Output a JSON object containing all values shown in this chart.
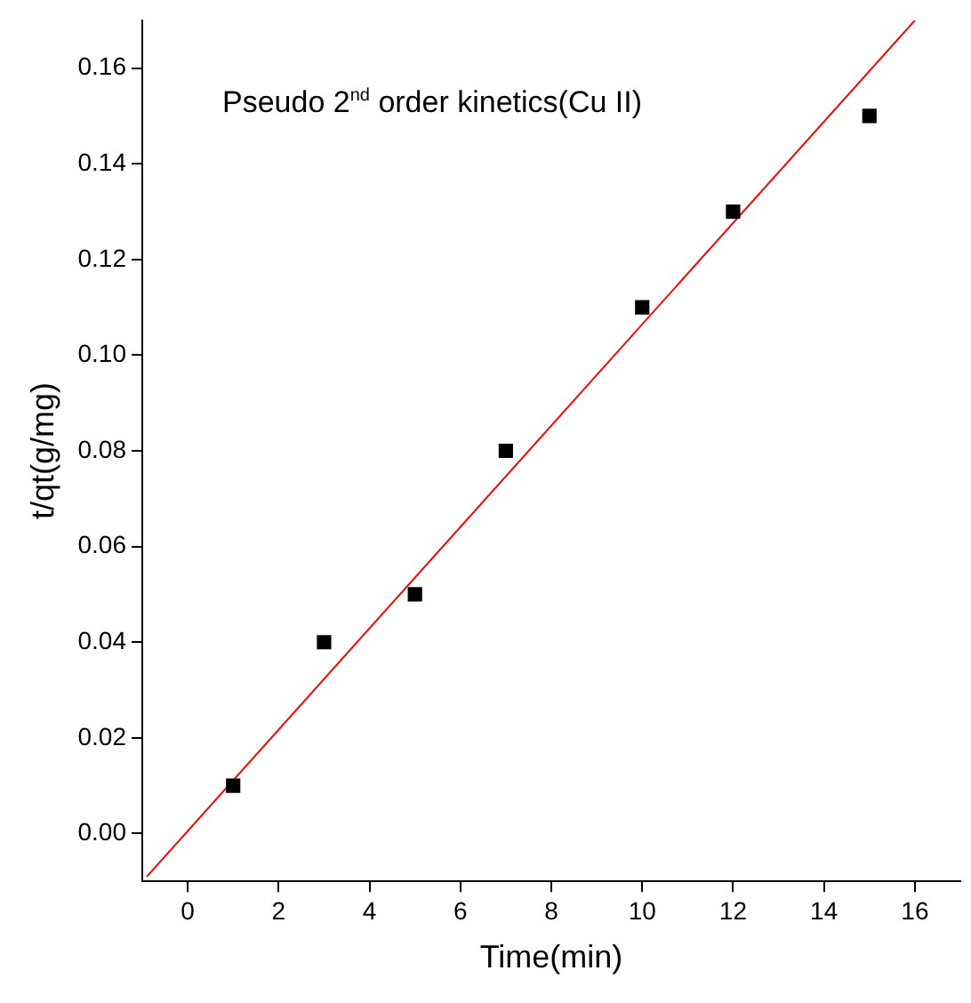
{
  "chart_data": {
    "type": "scatter",
    "xlabel": "Time(min)",
    "ylabel": "t/qt(g/mg)",
    "annotations": [
      "Pseudo 2$^{nd}$ order kinetics(Cu II)"
    ],
    "series": [
      {
        "color": "#000000",
        "marker": "square",
        "x": [
          1,
          3,
          5,
          7,
          10,
          12,
          15
        ],
        "values": [
          0.01,
          0.04,
          0.05,
          0.08,
          0.11,
          0.13,
          0.15
        ]
      },
      {
        "type": "line",
        "color": "#ff0000",
        "marker": "none",
        "line_style": "solid",
        "x": [
          -0.9,
          16
        ],
        "values": [
          -0.009,
          0.17
        ]
      }
    ],
    "xlim": [
      -1,
      17
    ],
    "xticks": [
      0,
      2,
      4,
      6,
      8,
      10,
      12,
      14,
      16
    ],
    "ylim": [
      -0.01,
      0.17
    ],
    "yticks": [
      {
        "value": 0,
        "label": "0.00"
      },
      {
        "value": 0.02,
        "label": "0.02"
      },
      {
        "value": 0.04,
        "label": "0.04"
      },
      {
        "value": 0.06,
        "label": "0.06"
      },
      {
        "value": 0.08,
        "label": "0.08"
      },
      {
        "value": 0.1,
        "label": "0.10"
      },
      {
        "value": 0.12,
        "label": "0.12"
      },
      {
        "value": 0.14,
        "label": "0.14"
      },
      {
        "value": 0.16,
        "label": "0.16"
      }
    ],
    "grid": false,
    "legend": false
  }
}
